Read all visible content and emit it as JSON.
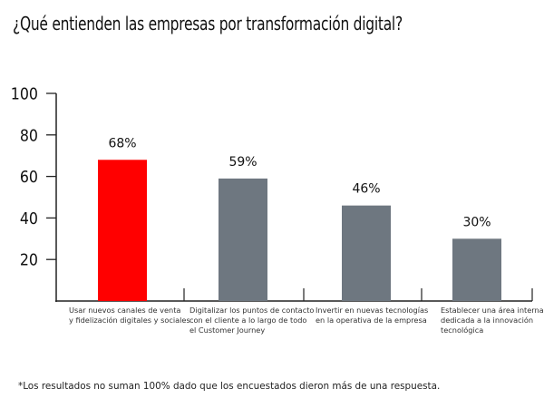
{
  "chart_data": {
    "type": "bar",
    "title": "¿Qué entienden las empresas por transformación digital?",
    "xlabel": "",
    "ylabel": "",
    "ylim": [
      0,
      100
    ],
    "yticks": [
      20,
      40,
      60,
      80,
      100
    ],
    "grid": false,
    "categories": [
      [
        "Usar nuevos canales de venta",
        "y fidelización digitales y sociales"
      ],
      [
        "Digitalizar los puntos de contacto",
        "con el cliente a lo largo de todo",
        "el Customer Journey"
      ],
      [
        "Invertir en nuevas tecnologías",
        "en la operativa de la empresa"
      ],
      [
        "Establecer una área interna",
        "dedicada a la innovación",
        "tecnológica"
      ]
    ],
    "values": [
      68,
      59,
      46,
      30
    ],
    "value_labels": [
      "68%",
      "59%",
      "46%",
      "30%"
    ],
    "colors": [
      "#ff0000",
      "#6e7780",
      "#6e7780",
      "#6e7780"
    ],
    "footnote": "*Los resultados no suman 100% dado que los encuestados dieron más de una respuesta."
  }
}
